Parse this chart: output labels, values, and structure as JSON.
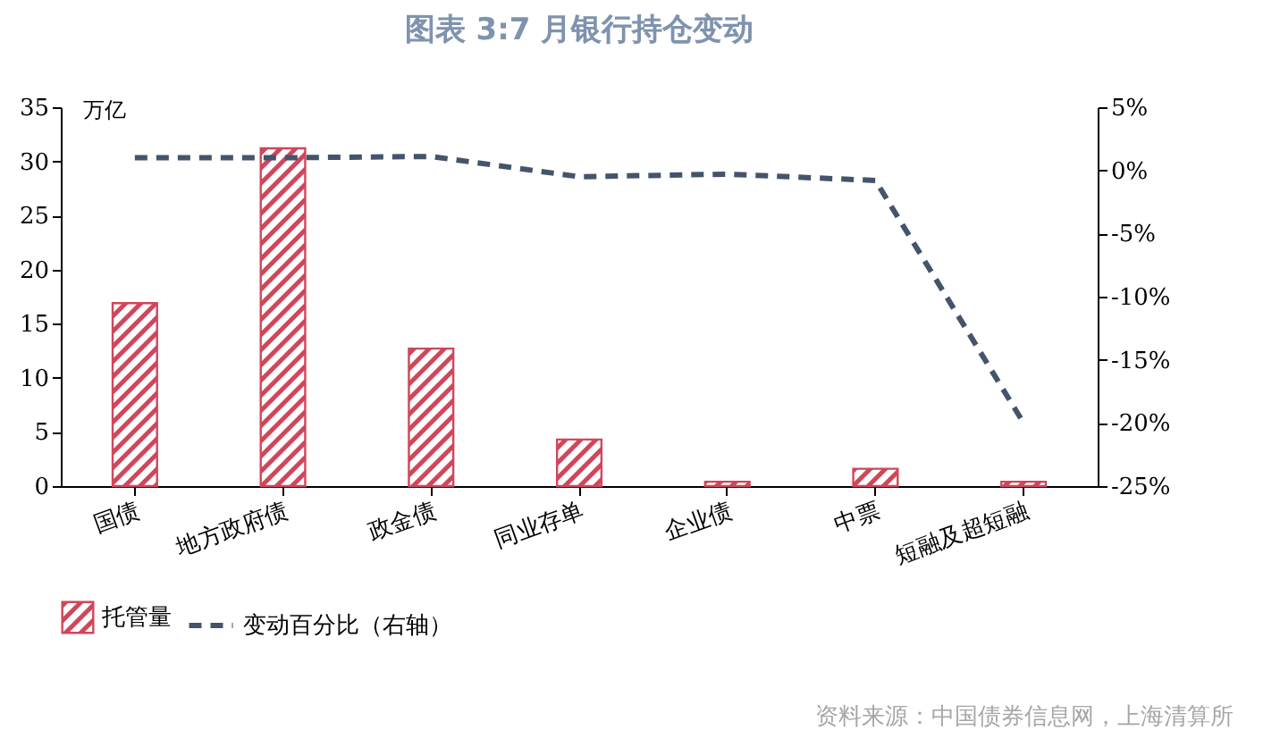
{
  "chart_data": {
    "type": "bar",
    "title": "图表 3:7 月银行持仓变动",
    "ylabel": "万亿",
    "categories": [
      "国债",
      "地方政府债",
      "政金债",
      "同业存单",
      "企业债",
      "中票",
      "短融及超短融"
    ],
    "series": [
      {
        "name": "托管量",
        "color": "#d0465a",
        "values": [
          16.9,
          31.2,
          12.7,
          4.3,
          0.4,
          1.6,
          0.4
        ]
      },
      {
        "name": "变动百分比（右轴）",
        "type": "line",
        "axis": "y2",
        "color": "#44546a",
        "line_style": "dashed",
        "values": [
          1.0,
          1.0,
          1.1,
          -0.5,
          -0.3,
          -0.8,
          -20.0
        ]
      }
    ],
    "ylim": [
      0,
      35
    ],
    "yticks": [
      0,
      5,
      10,
      15,
      20,
      25,
      30,
      35
    ],
    "y2lim": [
      -25,
      5
    ],
    "y2ticks": [
      {
        "value": 5,
        "label": "5%"
      },
      {
        "value": 0,
        "label": "0%"
      },
      {
        "value": -5,
        "label": "-5%"
      },
      {
        "value": -10,
        "label": "-10%"
      },
      {
        "value": -15,
        "label": "-15%"
      },
      {
        "value": -20,
        "label": "-20%"
      },
      {
        "value": -25,
        "label": "-25%"
      }
    ],
    "legend": "bottom",
    "grid": false,
    "marker": "none",
    "annotations": [
      "资料来源：中国债券信息网，上海清算所"
    ]
  }
}
